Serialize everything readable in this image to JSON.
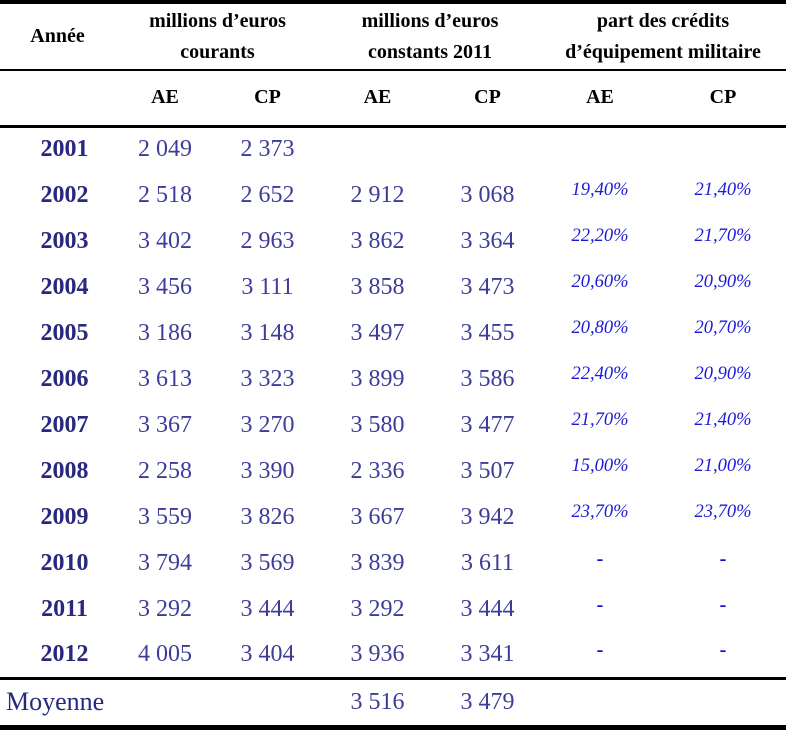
{
  "colors": {
    "header_text": "#000000",
    "year_text": "#28287e",
    "number_text": "#3d3d99",
    "percent_text": "#1a1ad6",
    "rule_lines": "#000000",
    "background": "#ffffff"
  },
  "chart_data": {
    "type": "table",
    "header": {
      "annee": "Année",
      "groups": [
        {
          "line1": "millions d’euros",
          "line2": "courants"
        },
        {
          "line1": "millions d’euros",
          "line2": "constants 2011"
        },
        {
          "line1": "part des crédits",
          "line2": "d’équipement militaire"
        }
      ],
      "subheaders": [
        "AE",
        "CP",
        "AE",
        "CP",
        "AE",
        "CP"
      ]
    },
    "rows": [
      {
        "year": "2001",
        "values": [
          "2 049",
          "2 373",
          "",
          "",
          "",
          ""
        ]
      },
      {
        "year": "2002",
        "values": [
          "2 518",
          "2 652",
          "2 912",
          "3 068",
          "19,40%",
          "21,40%"
        ]
      },
      {
        "year": "2003",
        "values": [
          "3 402",
          "2 963",
          "3 862",
          "3 364",
          "22,20%",
          "21,70%"
        ]
      },
      {
        "year": "2004",
        "values": [
          "3 456",
          "3 111",
          "3 858",
          "3 473",
          "20,60%",
          "20,90%"
        ]
      },
      {
        "year": "2005",
        "values": [
          "3 186",
          "3 148",
          "3 497",
          "3 455",
          "20,80%",
          "20,70%"
        ]
      },
      {
        "year": "2006",
        "values": [
          "3 613",
          "3 323",
          "3 899",
          "3 586",
          "22,40%",
          "20,90%"
        ]
      },
      {
        "year": "2007",
        "values": [
          "3 367",
          "3 270",
          "3 580",
          "3 477",
          "21,70%",
          "21,40%"
        ]
      },
      {
        "year": "2008",
        "values": [
          "2 258",
          "3 390",
          "2 336",
          "3 507",
          "15,00%",
          "21,00%"
        ]
      },
      {
        "year": "2009",
        "values": [
          "3 559",
          "3 826",
          "3 667",
          "3 942",
          "23,70%",
          "23,70%"
        ]
      },
      {
        "year": "2010",
        "values": [
          "3 794",
          "3 569",
          "3 839",
          "3 611",
          "-",
          "-"
        ]
      },
      {
        "year": "2011",
        "values": [
          "3 292",
          "3 444",
          "3 292",
          "3 444",
          "-",
          "-"
        ]
      },
      {
        "year": "2012",
        "values": [
          "4 005",
          "3 404",
          "3 936",
          "3 341",
          "-",
          "-"
        ]
      }
    ],
    "footer": {
      "label": "Moyenne",
      "ae_constant": "3 516",
      "cp_constant": "3 479"
    }
  }
}
